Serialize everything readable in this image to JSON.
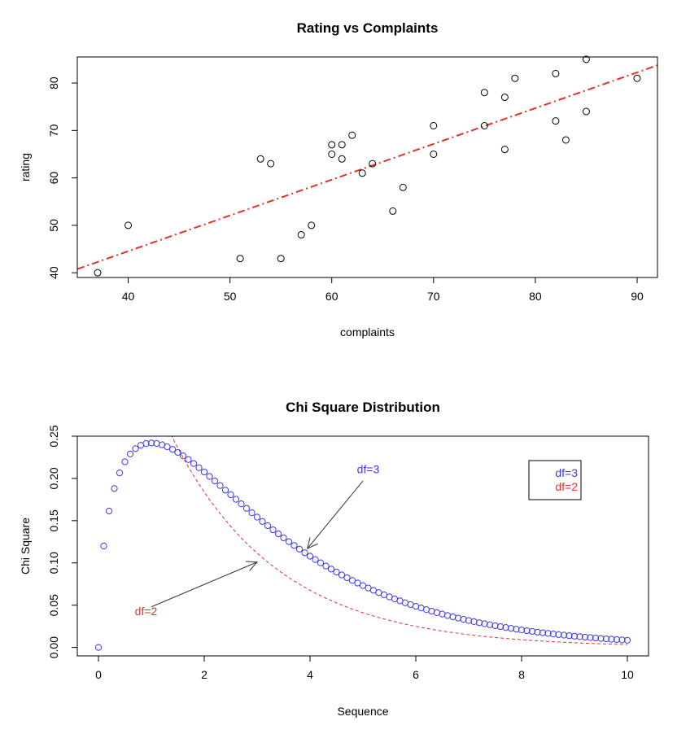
{
  "chart_data": [
    {
      "type": "scatter",
      "title": "Rating vs Complaints",
      "xlabel": "complaints",
      "ylabel": "rating",
      "xlim": [
        35,
        92
      ],
      "ylim": [
        39,
        85.5
      ],
      "xticks": [
        40,
        50,
        60,
        70,
        80,
        90
      ],
      "yticks": [
        40,
        50,
        60,
        70,
        80
      ],
      "grid": false,
      "point_color": "#000000",
      "points": [
        [
          37,
          40
        ],
        [
          40,
          50
        ],
        [
          51,
          43
        ],
        [
          53,
          64
        ],
        [
          54,
          63
        ],
        [
          55,
          43
        ],
        [
          57,
          48
        ],
        [
          58,
          50
        ],
        [
          60,
          67
        ],
        [
          60,
          65
        ],
        [
          61,
          67
        ],
        [
          61,
          64
        ],
        [
          62,
          69
        ],
        [
          63,
          61
        ],
        [
          64,
          63
        ],
        [
          66,
          53
        ],
        [
          67,
          58
        ],
        [
          70,
          71
        ],
        [
          70,
          65
        ],
        [
          75,
          78
        ],
        [
          75,
          71
        ],
        [
          77,
          77
        ],
        [
          77,
          66
        ],
        [
          78,
          81
        ],
        [
          82,
          82
        ],
        [
          82,
          72
        ],
        [
          83,
          68
        ],
        [
          85,
          85
        ],
        [
          85,
          74
        ],
        [
          90,
          81
        ]
      ],
      "fit_line": {
        "intercept": 14.38,
        "slope": 0.754,
        "color": "#e0322a",
        "style": "dash-dot"
      }
    },
    {
      "type": "line",
      "title": "Chi Square Distribution",
      "xlabel": "Sequence",
      "ylabel": "Chi Square",
      "xlim": [
        -0.4,
        10.4
      ],
      "ylim": [
        -0.01,
        0.25
      ],
      "xticks": [
        0,
        2,
        4,
        6,
        8,
        10
      ],
      "yticks": [
        0.0,
        0.05,
        0.1,
        0.15,
        0.2,
        0.25
      ],
      "ytick_labels": [
        "0.00",
        "0.05",
        "0.10",
        "0.15",
        "0.20",
        "0.25"
      ],
      "grid": false,
      "series": [
        {
          "name": "df=3",
          "df": 3,
          "x_from": 0,
          "x_to": 10,
          "x_step": 0.1,
          "render": "points",
          "color": "#3a3ae8"
        },
        {
          "name": "df=2",
          "df": 2,
          "x_from": 0,
          "x_to": 10,
          "x_step": 0.1,
          "render": "dashed-line",
          "color": "#e0322a"
        }
      ],
      "legend": {
        "position": "top-right",
        "entries": [
          {
            "label": "df=3",
            "color": "#3a3ae8"
          },
          {
            "label": "df=2",
            "color": "#e0322a"
          }
        ]
      },
      "annotations": [
        {
          "text": "df=3",
          "color": "#3a3ae8",
          "label_at": [
            5.1,
            0.206
          ],
          "arrow_from": [
            5.0,
            0.197
          ],
          "arrow_to": [
            3.95,
            0.117
          ]
        },
        {
          "text": "df=2",
          "color": "#e0322a",
          "label_at": [
            0.9,
            0.038
          ],
          "arrow_from": [
            1.0,
            0.048
          ],
          "arrow_to": [
            3.0,
            0.101
          ]
        }
      ]
    }
  ]
}
